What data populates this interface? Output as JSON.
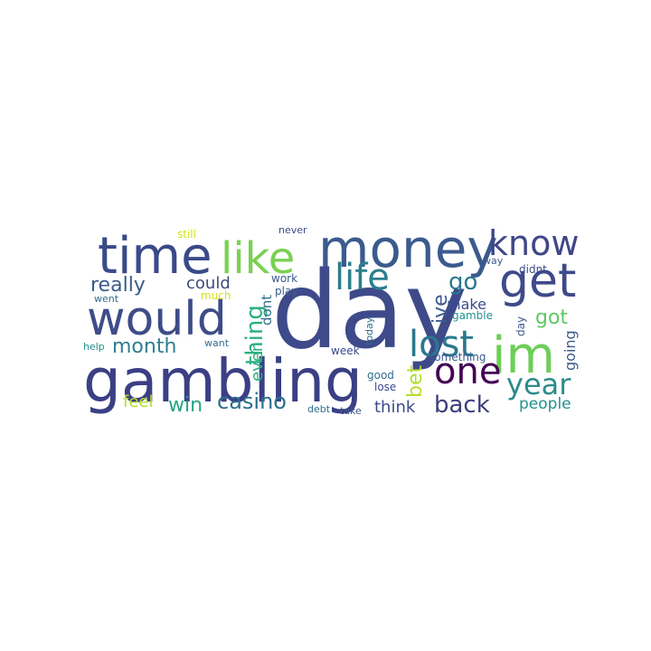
{
  "colors": {
    "background": "#ffffff",
    "palette": [
      "#3b4a8c",
      "#2f6f8e",
      "#21918c",
      "#2cb07e",
      "#5ec962",
      "#b5de2b",
      "#fde725",
      "#440154",
      "#443983",
      "#31688e"
    ]
  },
  "words": [
    {
      "text": "day",
      "color": "#3e4a89"
    },
    {
      "text": "gambling",
      "color": "#3b3f84"
    },
    {
      "text": "money",
      "color": "#3b5a8e"
    },
    {
      "text": "time",
      "color": "#3a4a8a"
    },
    {
      "text": "would",
      "color": "#3e4c88"
    },
    {
      "text": "like",
      "color": "#7ad151"
    },
    {
      "text": "life",
      "color": "#2c7e8e"
    },
    {
      "text": "get",
      "color": "#3e4a89"
    },
    {
      "text": "know",
      "color": "#3f4788"
    },
    {
      "text": "im",
      "color": "#6ece58"
    },
    {
      "text": "lost",
      "color": "#2a788e"
    },
    {
      "text": "one",
      "color": "#440154"
    },
    {
      "text": "year",
      "color": "#2c8c8a"
    },
    {
      "text": "back",
      "color": "#3b3f7a"
    },
    {
      "text": "casino",
      "color": "#2a6f8e"
    },
    {
      "text": "month",
      "color": "#2f7e8e"
    },
    {
      "text": "really",
      "color": "#3b5a8a"
    },
    {
      "text": "could",
      "color": "#3f4a7a"
    },
    {
      "text": "thing",
      "color": "#2cb07e"
    },
    {
      "text": "win",
      "color": "#21a685"
    },
    {
      "text": "feel",
      "color": "#b5de2b"
    },
    {
      "text": "go",
      "color": "#2a788e"
    },
    {
      "text": "ive",
      "color": "#3b5a8e"
    },
    {
      "text": "make",
      "color": "#3b4a8c"
    },
    {
      "text": "got",
      "color": "#5ec962"
    },
    {
      "text": "bet",
      "color": "#b5de2b"
    },
    {
      "text": "think",
      "color": "#3b4a8c"
    },
    {
      "text": "people",
      "color": "#21918c"
    },
    {
      "text": "going",
      "color": "#3b5a8a"
    },
    {
      "text": "even",
      "color": "#2cb07e"
    },
    {
      "text": "dont",
      "color": "#2f6f8e"
    },
    {
      "text": "still",
      "color": "#d2e21b"
    },
    {
      "text": "never",
      "color": "#3b4a8c"
    },
    {
      "text": "work",
      "color": "#3b5a8e"
    },
    {
      "text": "play",
      "color": "#3b5a8e"
    },
    {
      "text": "much",
      "color": "#d2e21b"
    },
    {
      "text": "went",
      "color": "#2f6f8e"
    },
    {
      "text": "help",
      "color": "#21918c"
    },
    {
      "text": "want",
      "color": "#2f6f8e"
    },
    {
      "text": "way",
      "color": "#3b5a8e"
    },
    {
      "text": "didnt",
      "color": "#3b4a8c"
    },
    {
      "text": "gamble",
      "color": "#21918c"
    },
    {
      "text": "day",
      "color": "#3b5a8e"
    },
    {
      "text": "today",
      "color": "#2f6f8e"
    },
    {
      "text": "something",
      "color": "#3b5a8e"
    },
    {
      "text": "week",
      "color": "#3b4a8c"
    },
    {
      "text": "good",
      "color": "#2f6f8e"
    },
    {
      "text": "lose",
      "color": "#3b4a8c"
    },
    {
      "text": "debt",
      "color": "#2f6f8e"
    },
    {
      "text": "take",
      "color": "#3b5a8e"
    }
  ]
}
